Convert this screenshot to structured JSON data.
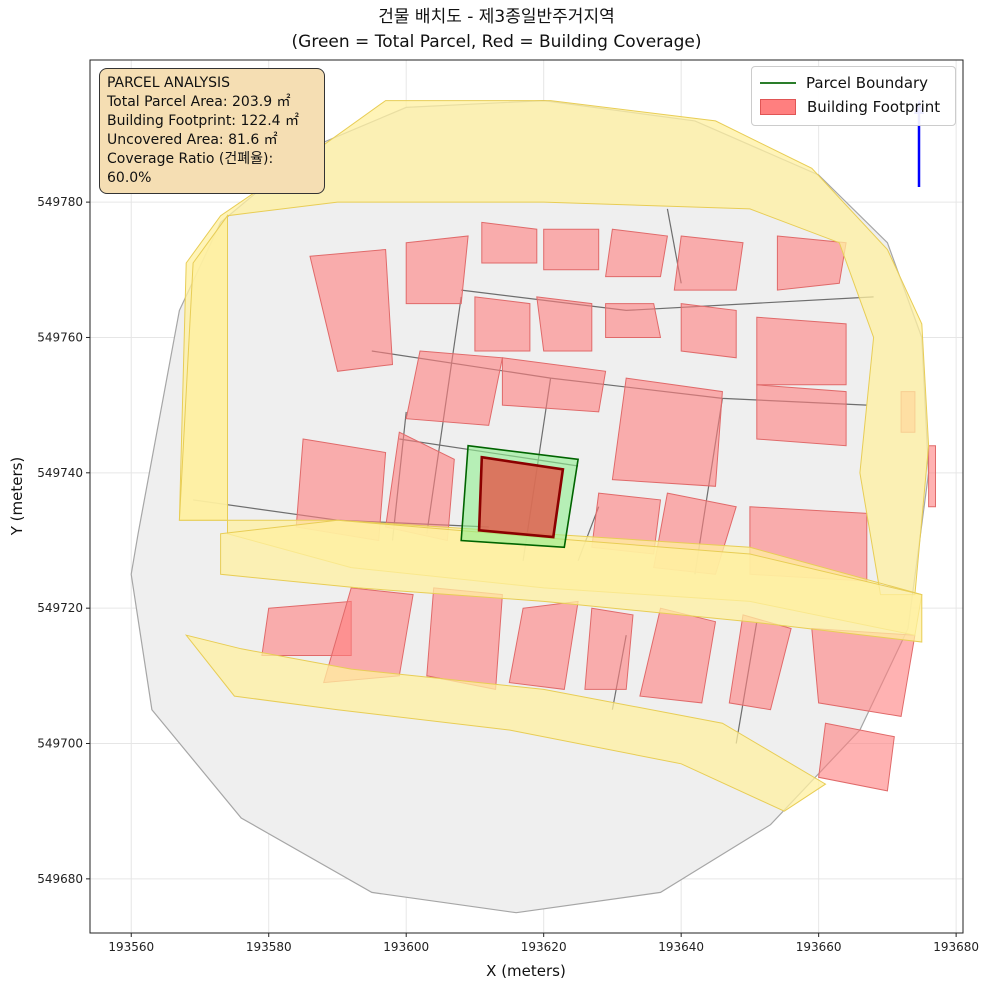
{
  "title": {
    "line1": "건물 배치도 - 제3종일반주거지역",
    "line2": "(Green = Total Parcel, Red = Building Coverage)"
  },
  "info_box": {
    "heading": "PARCEL ANALYSIS",
    "lines": [
      "Total Parcel Area: 203.9 ㎡",
      "Building Footprint: 122.4 ㎡",
      "Uncovered Area: 81.6 ㎡",
      "Coverage Ratio (건폐율): 60.0%"
    ]
  },
  "legend": {
    "entries": [
      "Parcel Boundary",
      "Building Footprint"
    ]
  },
  "colors": {
    "parcel_edge": "#006400",
    "parcel_fill": "#90ee90",
    "building_fill": "#ff7f7f",
    "target_building_edge": "#8b0000",
    "road_fill": "#fff0a0",
    "context_fill": "#efefef",
    "north_arrow": "#0000ff"
  },
  "chart_data": {
    "type": "map",
    "xlabel": "X (meters)",
    "ylabel": "Y (meters)",
    "xlim": [
      193554,
      193681
    ],
    "ylim": [
      549672,
      549801
    ],
    "xticks": [
      193560,
      193580,
      193600,
      193620,
      193640,
      193660,
      193680
    ],
    "yticks": [
      549680,
      549700,
      549720,
      549740,
      549760,
      549780
    ],
    "grid": true,
    "legend_position": "top-right",
    "target_parcel": [
      [
        193609,
        549744
      ],
      [
        193625,
        549742
      ],
      [
        193623,
        549729
      ],
      [
        193608,
        549730
      ]
    ],
    "target_building": [
      [
        193611,
        549742.3
      ],
      [
        193622.8,
        549740.5
      ],
      [
        193621.4,
        549730.5
      ],
      [
        193610.6,
        549731.5
      ]
    ],
    "site_outline": [
      [
        193561,
        549731
      ],
      [
        193567,
        549764
      ],
      [
        193573,
        549777
      ],
      [
        193586,
        549788
      ],
      [
        193600,
        549794
      ],
      [
        193620,
        549795
      ],
      [
        193642,
        549792
      ],
      [
        193660,
        549784
      ],
      [
        193670,
        549774
      ],
      [
        193675,
        549760
      ],
      [
        193676,
        549740
      ],
      [
        193673,
        549717
      ],
      [
        193666,
        549702
      ],
      [
        193653,
        549688
      ],
      [
        193637,
        549678
      ],
      [
        193616,
        549675
      ],
      [
        193595,
        549678
      ],
      [
        193576,
        549689
      ],
      [
        193563,
        549705
      ],
      [
        193560,
        549725
      ]
    ],
    "roads": [
      [
        [
          193568,
          549771
        ],
        [
          193573,
          549778
        ],
        [
          193586,
          549787
        ],
        [
          193597,
          549795
        ],
        [
          193621,
          549795
        ],
        [
          193645,
          549792
        ],
        [
          193659,
          549785
        ],
        [
          193670,
          549773
        ],
        [
          193675,
          549762
        ],
        [
          193676,
          549744
        ],
        [
          193674,
          549722
        ],
        [
          193669,
          549722
        ],
        [
          193666,
          549740
        ],
        [
          193668,
          549760
        ],
        [
          193663,
          549774
        ],
        [
          193650,
          549779
        ],
        [
          193620,
          549780
        ],
        [
          193590,
          549780
        ],
        [
          193574,
          549778
        ],
        [
          193574,
          549731
        ],
        [
          193592,
          549726
        ],
        [
          193620,
          549723
        ],
        [
          193650,
          549721
        ],
        [
          193674,
          549716
        ],
        [
          193675,
          549722
        ],
        [
          193650,
          549729
        ],
        [
          193620,
          549731
        ],
        [
          193590,
          549733
        ],
        [
          193567,
          549733
        ]
      ],
      [
        [
          193567,
          549733
        ],
        [
          193569,
          549771
        ],
        [
          193574,
          549778
        ],
        [
          193574,
          549733
        ]
      ],
      [
        [
          193573,
          549731
        ],
        [
          193590,
          549733
        ],
        [
          193625,
          549730
        ],
        [
          193650,
          549728
        ],
        [
          193675,
          549722
        ],
        [
          193675,
          549715
        ],
        [
          193650,
          549718
        ],
        [
          193620,
          549721
        ],
        [
          193593,
          549723
        ],
        [
          193573,
          549725
        ]
      ],
      [
        [
          193568,
          549716
        ],
        [
          193575,
          549707
        ],
        [
          193590,
          549705
        ],
        [
          193615,
          549702
        ],
        [
          193640,
          549697
        ],
        [
          193655,
          549690
        ],
        [
          193661,
          549694
        ],
        [
          193646,
          549703
        ],
        [
          193620,
          549708
        ],
        [
          193592,
          549711
        ],
        [
          193576,
          549714
        ]
      ]
    ],
    "context_buildings": [
      [
        [
          193586,
          549772
        ],
        [
          193597,
          549773
        ],
        [
          193598,
          549756
        ],
        [
          193590,
          549755
        ]
      ],
      [
        [
          193600,
          549774
        ],
        [
          193609,
          549775
        ],
        [
          193608,
          549765
        ],
        [
          193600,
          549765
        ]
      ],
      [
        [
          193611,
          549777
        ],
        [
          193619,
          549776
        ],
        [
          193619,
          549771
        ],
        [
          193611,
          549771
        ]
      ],
      [
        [
          193620,
          549776
        ],
        [
          193628,
          549776
        ],
        [
          193628,
          549770
        ],
        [
          193620,
          549770
        ]
      ],
      [
        [
          193630,
          549776
        ],
        [
          193638,
          549775
        ],
        [
          193637,
          549769
        ],
        [
          193629,
          549769
        ]
      ],
      [
        [
          193640,
          549775
        ],
        [
          193649,
          549774
        ],
        [
          193648,
          549767
        ],
        [
          193639,
          549767
        ]
      ],
      [
        [
          193654,
          549775
        ],
        [
          193664,
          549774
        ],
        [
          193663,
          549768
        ],
        [
          193654,
          549767
        ]
      ],
      [
        [
          193610,
          549766
        ],
        [
          193618,
          549765
        ],
        [
          193618,
          549758
        ],
        [
          193610,
          549758
        ]
      ],
      [
        [
          193619,
          549766
        ],
        [
          193627,
          549765
        ],
        [
          193627,
          549758
        ],
        [
          193620,
          549758
        ]
      ],
      [
        [
          193629,
          549765
        ],
        [
          193636,
          549765
        ],
        [
          193637,
          549760
        ],
        [
          193629,
          549760
        ]
      ],
      [
        [
          193640,
          549765
        ],
        [
          193648,
          549764
        ],
        [
          193648,
          549757
        ],
        [
          193640,
          549758
        ]
      ],
      [
        [
          193651,
          549763
        ],
        [
          193664,
          549762
        ],
        [
          193664,
          549753
        ],
        [
          193651,
          549753
        ]
      ],
      [
        [
          193602,
          549758
        ],
        [
          193614,
          549757
        ],
        [
          193612,
          549747
        ],
        [
          193600,
          549748
        ]
      ],
      [
        [
          193614,
          549757
        ],
        [
          193629,
          549755
        ],
        [
          193628,
          549749
        ],
        [
          193614,
          549750
        ]
      ],
      [
        [
          193632,
          549754
        ],
        [
          193646,
          549752
        ],
        [
          193645,
          549738
        ],
        [
          193630,
          549739
        ]
      ],
      [
        [
          193651,
          549753
        ],
        [
          193664,
          549752
        ],
        [
          193664,
          549744
        ],
        [
          193651,
          549745
        ]
      ],
      [
        [
          193585,
          549745
        ],
        [
          193597,
          549743
        ],
        [
          193596,
          549730
        ],
        [
          193584,
          549732
        ]
      ],
      [
        [
          193599,
          549746
        ],
        [
          193607,
          549742
        ],
        [
          193606,
          549730
        ],
        [
          193597,
          549732
        ]
      ],
      [
        [
          193628,
          549737
        ],
        [
          193637,
          549736
        ],
        [
          193636,
          549728
        ],
        [
          193627,
          549729
        ]
      ],
      [
        [
          193638,
          549737
        ],
        [
          193648,
          549735
        ],
        [
          193645,
          549725
        ],
        [
          193636,
          549726
        ]
      ],
      [
        [
          193650,
          549735
        ],
        [
          193667,
          549734
        ],
        [
          193667,
          549724
        ],
        [
          193650,
          549725
        ]
      ],
      [
        [
          193580,
          549720
        ],
        [
          193592,
          549721
        ],
        [
          193592,
          549713
        ],
        [
          193579,
          549713
        ]
      ],
      [
        [
          193592,
          549723
        ],
        [
          193601,
          549722
        ],
        [
          193599,
          549710
        ],
        [
          193588,
          549709
        ]
      ],
      [
        [
          193604,
          549723
        ],
        [
          193614,
          549722
        ],
        [
          193613,
          549708
        ],
        [
          193603,
          549710
        ]
      ],
      [
        [
          193617,
          549720
        ],
        [
          193625,
          549721
        ],
        [
          193623,
          549708
        ],
        [
          193615,
          549709
        ]
      ],
      [
        [
          193627,
          549720
        ],
        [
          193633,
          549719
        ],
        [
          193632,
          549708
        ],
        [
          193626,
          549708
        ]
      ],
      [
        [
          193637,
          549720
        ],
        [
          193645,
          549718
        ],
        [
          193643,
          549706
        ],
        [
          193634,
          549707
        ]
      ],
      [
        [
          193649,
          549719
        ],
        [
          193656,
          549717
        ],
        [
          193653,
          549705
        ],
        [
          193647,
          549706
        ]
      ],
      [
        [
          193659,
          549717
        ],
        [
          193674,
          549716
        ],
        [
          193672,
          549704
        ],
        [
          193660,
          549706
        ]
      ],
      [
        [
          193661,
          549703
        ],
        [
          193671,
          549701
        ],
        [
          193670,
          549693
        ],
        [
          193660,
          549695
        ]
      ],
      [
        [
          193672,
          549752
        ],
        [
          193674,
          549752
        ],
        [
          193674,
          549746
        ],
        [
          193672,
          549746
        ]
      ],
      [
        [
          193676,
          549744
        ],
        [
          193677,
          549744
        ],
        [
          193677,
          549735
        ],
        [
          193676,
          549735
        ]
      ]
    ],
    "parcel_lines": [
      [
        [
          193569,
          549736
        ],
        [
          193590,
          549733
        ],
        [
          193612,
          549732
        ]
      ],
      [
        [
          193599,
          549745
        ],
        [
          193625,
          549741
        ]
      ],
      [
        [
          193595,
          549758
        ],
        [
          193621,
          549754
        ],
        [
          193646,
          549751
        ],
        [
          193667,
          549750
        ]
      ],
      [
        [
          193608,
          549767
        ],
        [
          193632,
          549764
        ],
        [
          193650,
          549765
        ],
        [
          193668,
          549766
        ]
      ],
      [
        [
          193600,
          549749
        ],
        [
          193598,
          549730
        ]
      ],
      [
        [
          193608,
          549766
        ],
        [
          193603,
          549731
        ]
      ],
      [
        [
          193621,
          549754
        ],
        [
          193617,
          549727
        ]
      ],
      [
        [
          193646,
          549751
        ],
        [
          193642,
          549725
        ]
      ],
      [
        [
          193638,
          549779
        ],
        [
          193640,
          549768
        ]
      ],
      [
        [
          193628,
          549735
        ],
        [
          193625,
          549727
        ]
      ],
      [
        [
          193651,
          549718
        ],
        [
          193648,
          549700
        ]
      ],
      [
        [
          193632,
          549716
        ],
        [
          193630,
          549705
        ]
      ]
    ]
  }
}
